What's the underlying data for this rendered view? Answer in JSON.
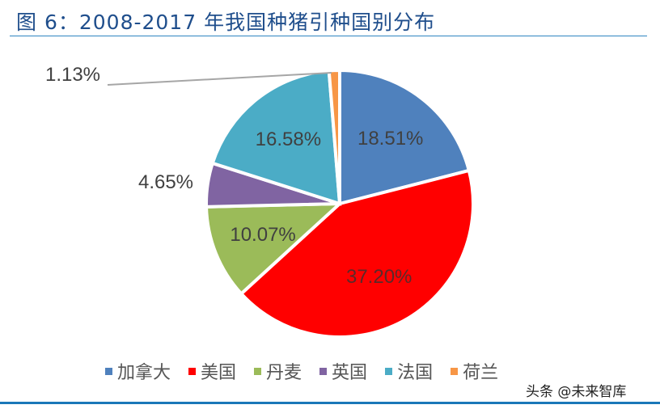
{
  "title": "图 6：2008-2017 年我国种猪引种国别分布",
  "chart_data": {
    "type": "pie",
    "title": "图 6：2008-2017 年我国种猪引种国别分布",
    "categories": [
      "加拿大",
      "美国",
      "丹麦",
      "英国",
      "法国",
      "荷兰"
    ],
    "values": [
      18.51,
      37.2,
      10.07,
      4.65,
      16.58,
      1.13
    ],
    "labels": [
      "18.51%",
      "37.20%",
      "10.07%",
      "4.65%",
      "16.58%",
      "1.13%"
    ],
    "colors": [
      "#4f81bd",
      "#ff0000",
      "#9bbb59",
      "#8064a2",
      "#4bacc6",
      "#f79646"
    ],
    "start_angle_deg": 0,
    "direction": "clockwise",
    "legend_position": "bottom"
  },
  "legend": [
    {
      "label": "加拿大",
      "color": "#4f81bd"
    },
    {
      "label": "美国",
      "color": "#ff0000"
    },
    {
      "label": "丹麦",
      "color": "#9bbb59"
    },
    {
      "label": "英国",
      "color": "#8064a2"
    },
    {
      "label": "法国",
      "color": "#4bacc6"
    },
    {
      "label": "荷兰",
      "color": "#f79646"
    }
  ],
  "watermark": "头条 @未来智库"
}
